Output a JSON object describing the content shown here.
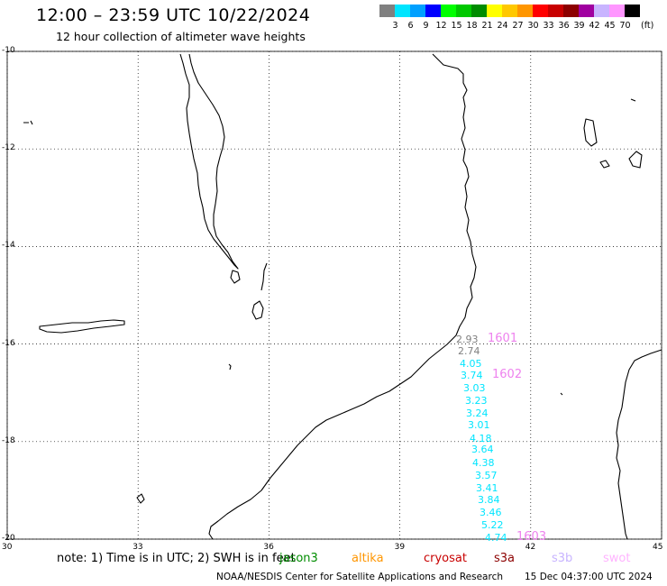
{
  "header": {
    "title": "12:00 – 23:59 UTC 10/22/2024",
    "subtitle": "12 hour collection of altimeter wave heights"
  },
  "legend": {
    "colors": [
      "#808080",
      "#00e5ff",
      "#00a0ff",
      "#0000ff",
      "#00ff00",
      "#00c800",
      "#008c00",
      "#ffff00",
      "#ffc800",
      "#ff9600",
      "#ff0000",
      "#c80000",
      "#8c0000",
      "#a000a0",
      "#c8b4ff",
      "#ff96ff",
      "#000000"
    ],
    "labels": [
      "3",
      "6",
      "9",
      "12",
      "15",
      "18",
      "21",
      "24",
      "27",
      "30",
      "33",
      "36",
      "39",
      "42",
      "45",
      "70"
    ],
    "unit": "(ft)"
  },
  "axes": {
    "lat_labels": [
      "-10",
      "-12",
      "-14",
      "-16",
      "-18",
      "-20"
    ],
    "lon_labels": [
      "30",
      "33",
      "36",
      "39",
      "42",
      "45"
    ]
  },
  "map_data": {
    "lon_range": [
      30,
      45
    ],
    "lat_range": [
      -20,
      -10
    ],
    "grid": true
  },
  "observations": [
    {
      "text": "2.93",
      "color": "#808080"
    },
    {
      "text": "2.74",
      "color": "#808080"
    },
    {
      "text": "4.05",
      "color": "#00e5ff"
    },
    {
      "text": "3.74",
      "color": "#00e5ff"
    },
    {
      "text": "3.03",
      "color": "#00e5ff"
    },
    {
      "text": "3.23",
      "color": "#00e5ff"
    },
    {
      "text": "3.24",
      "color": "#00e5ff"
    },
    {
      "text": "3.01",
      "color": "#00e5ff"
    },
    {
      "text": "4.18",
      "color": "#00e5ff"
    },
    {
      "text": "3.64",
      "color": "#00e5ff"
    },
    {
      "text": "4.38",
      "color": "#00e5ff"
    },
    {
      "text": "3.57",
      "color": "#00e5ff"
    },
    {
      "text": "3.41",
      "color": "#00e5ff"
    },
    {
      "text": "3.84",
      "color": "#00e5ff"
    },
    {
      "text": "3.46",
      "color": "#00e5ff"
    },
    {
      "text": "5.22",
      "color": "#00e5ff"
    },
    {
      "text": "4.74",
      "color": "#00e5ff"
    }
  ],
  "passes": [
    "1601",
    "1602",
    "1603"
  ],
  "footer": {
    "note": "note:  1) Time is in UTC;  2) SWH is in feet",
    "satellites": [
      {
        "name": "jason3",
        "color": "#008c00"
      },
      {
        "name": "altika",
        "color": "#ff9600"
      },
      {
        "name": "cryosat",
        "color": "#c80000"
      },
      {
        "name": "s3a",
        "color": "#8c0000"
      },
      {
        "name": "s3b",
        "color": "#c8b4ff"
      },
      {
        "name": "swot",
        "color": "#ffb4ff"
      }
    ],
    "credit": "NOAA/NESDIS Center for Satellite Applications and Research",
    "timestamp": "15 Dec 04:37:00 UTC 2024"
  }
}
